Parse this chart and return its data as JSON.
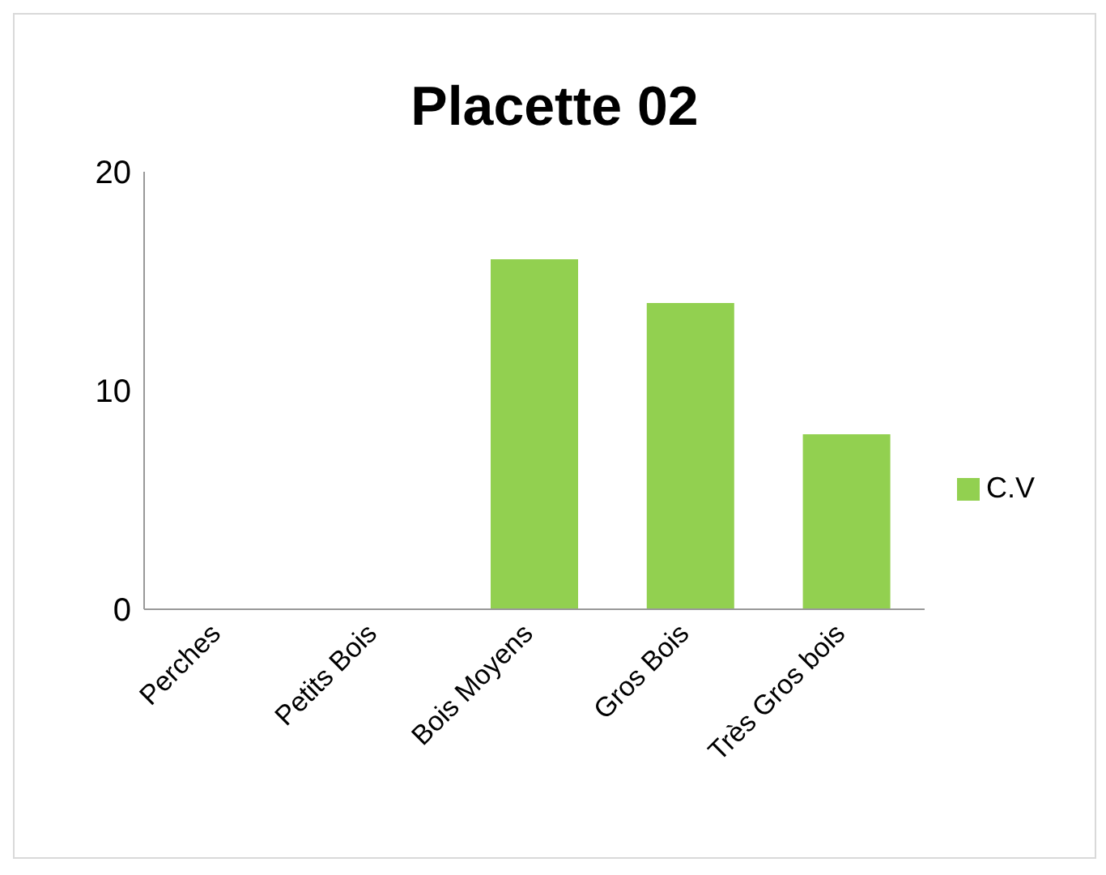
{
  "chart_data": {
    "type": "bar",
    "title": "Placette 02",
    "categories": [
      "Perches",
      "Petits Bois",
      "Bois Moyens",
      "Gros Bois",
      "Très Gros bois"
    ],
    "series": [
      {
        "name": "C.V",
        "color": "#92d050",
        "values": [
          0,
          0,
          16,
          14,
          8
        ]
      }
    ],
    "ylim": [
      0,
      20
    ],
    "yticks": [
      0,
      10,
      20
    ],
    "grid": false,
    "legend": "right"
  }
}
